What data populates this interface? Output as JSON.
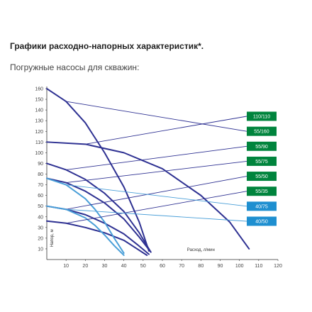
{
  "header": {
    "title": "Графики расходно-напорных характеристик*.",
    "subtitle": "Погружные насосы для скважин:"
  },
  "chart_data": {
    "type": "line",
    "xlabel": "Расход, л/мин",
    "ylabel": "Напор, м",
    "xlim": [
      0,
      120
    ],
    "ylim": [
      0,
      160
    ],
    "xticks": [
      10,
      20,
      30,
      40,
      50,
      60,
      70,
      80,
      90,
      100,
      110,
      120
    ],
    "yticks": [
      10,
      20,
      30,
      40,
      50,
      60,
      70,
      80,
      90,
      100,
      110,
      120,
      130,
      140,
      150,
      160
    ],
    "grid": false,
    "legend": "right",
    "series": [
      {
        "name": "110/110",
        "color": "#2e3192",
        "label_color": "#00843d",
        "x": [
          0,
          20,
          40,
          60,
          80,
          95,
          105
        ],
        "y": [
          110,
          108,
          100,
          85,
          60,
          35,
          10
        ]
      },
      {
        "name": "55/160",
        "color": "#2e3192",
        "label_color": "#00843d",
        "x": [
          0,
          10,
          20,
          30,
          40,
          48,
          53
        ],
        "y": [
          160,
          148,
          128,
          100,
          68,
          35,
          8
        ]
      },
      {
        "name": "55/90",
        "color": "#2e3192",
        "label_color": "#00843d",
        "x": [
          0,
          10,
          20,
          30,
          40,
          48,
          54
        ],
        "y": [
          90,
          84,
          75,
          62,
          45,
          25,
          7
        ]
      },
      {
        "name": "55/75",
        "color": "#2e3192",
        "label_color": "#00843d",
        "x": [
          0,
          10,
          20,
          30,
          40,
          48,
          54
        ],
        "y": [
          76,
          72,
          64,
          53,
          38,
          21,
          7
        ]
      },
      {
        "name": "55/50",
        "color": "#2e3192",
        "label_color": "#00843d",
        "x": [
          0,
          10,
          20,
          30,
          40,
          47,
          53
        ],
        "y": [
          50,
          47,
          42,
          34,
          24,
          14,
          5
        ]
      },
      {
        "name": "55/35",
        "color": "#2e3192",
        "label_color": "#00843d",
        "x": [
          0,
          10,
          20,
          30,
          40,
          46,
          52
        ],
        "y": [
          36,
          34,
          30,
          25,
          18,
          11,
          4
        ]
      },
      {
        "name": "40/75",
        "color": "#4a9fd8",
        "label_color": "#1e8fd0",
        "x": [
          0,
          10,
          20,
          25,
          30,
          35,
          40
        ],
        "y": [
          76,
          70,
          57,
          47,
          35,
          20,
          6
        ]
      },
      {
        "name": "40/50",
        "color": "#4a9fd8",
        "label_color": "#1e8fd0",
        "x": [
          0,
          10,
          20,
          25,
          30,
          35,
          40
        ],
        "y": [
          50,
          47,
          39,
          32,
          23,
          13,
          4
        ]
      }
    ]
  }
}
